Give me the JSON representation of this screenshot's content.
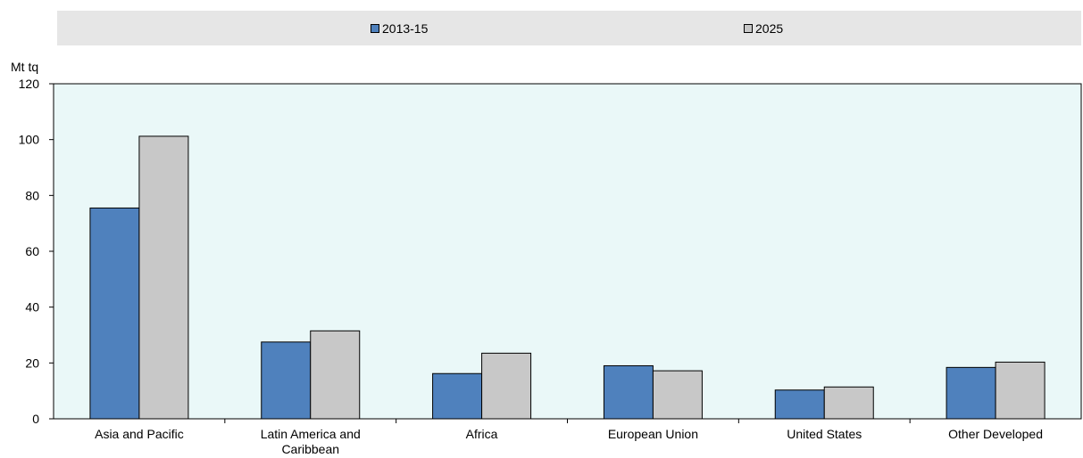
{
  "chart_data": {
    "type": "bar",
    "categories": [
      "Asia and Pacific",
      "Latin America and Caribbean",
      "Africa",
      "European Union",
      "United States",
      "Other Developed"
    ],
    "category_lines": [
      [
        "Asia and Pacific"
      ],
      [
        "Latin America and",
        "Caribbean"
      ],
      [
        "Africa"
      ],
      [
        "European Union"
      ],
      [
        "United States"
      ],
      [
        "Other Developed"
      ]
    ],
    "series": [
      {
        "name": "2013-15",
        "color": "#4f81bd",
        "values": [
          75.5,
          27.5,
          16.2,
          19.0,
          10.3,
          18.4
        ]
      },
      {
        "name": "2025",
        "color": "#c8c8c8",
        "values": [
          101.2,
          31.5,
          23.5,
          17.2,
          11.4,
          20.3
        ]
      }
    ],
    "ylabel": "Mt tq",
    "ylim": [
      0,
      120
    ],
    "yticks": [
      0,
      20,
      40,
      60,
      80,
      100,
      120
    ],
    "plot_background": "#eaf8f8",
    "legend_background": "#e6e6e6",
    "legend_position": "top",
    "grid": false
  }
}
